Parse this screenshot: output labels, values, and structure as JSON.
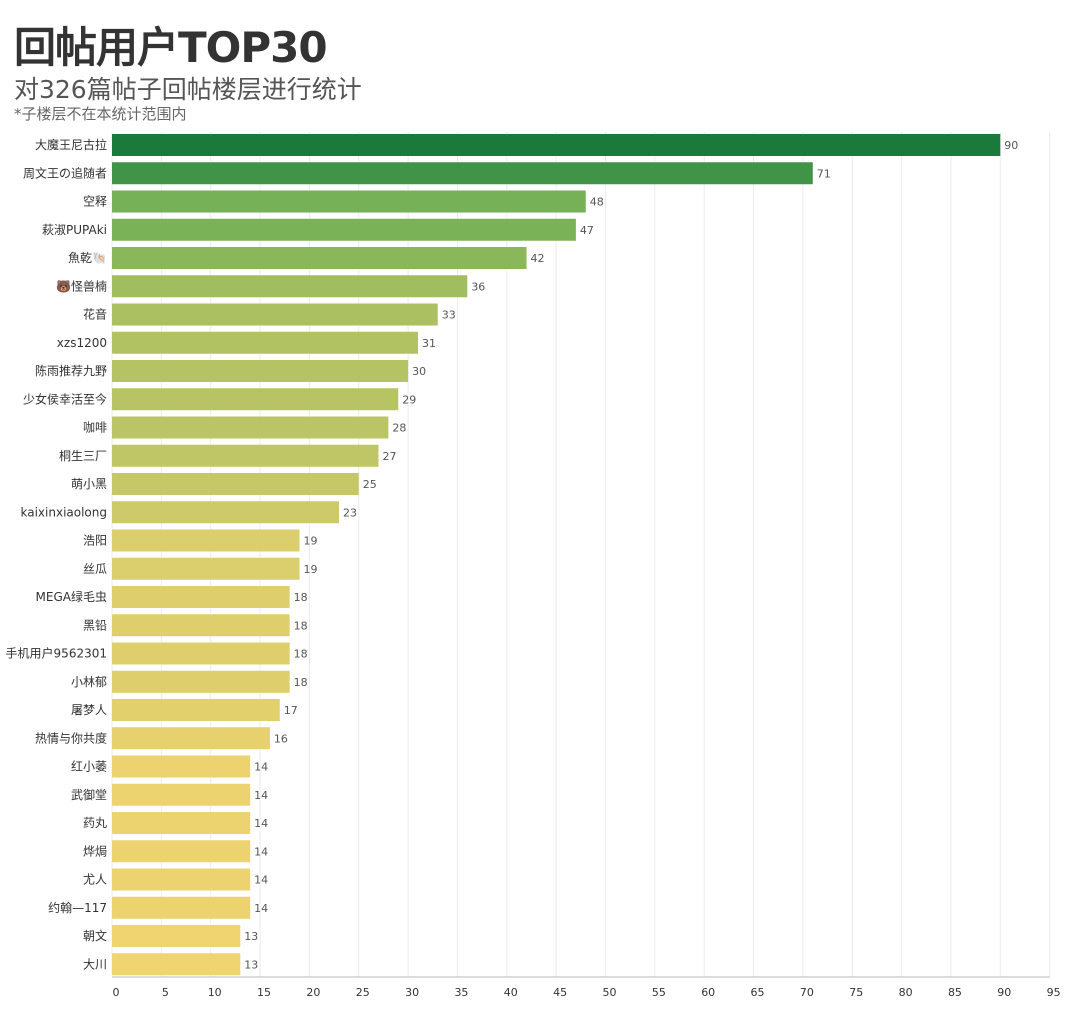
{
  "header": {
    "title": "回帖用户TOP30",
    "subtitle": "对326篇帖子回帖楼层进行统计",
    "note": "*子楼层不在本统计范围内"
  },
  "colors": {
    "bar_high": "#1a7a3c",
    "bar_mid": "#6aad54",
    "bar_low": "#f0d470",
    "gridline": "#ececec",
    "axis": "#bbbbbb"
  },
  "chart_data": {
    "type": "bar",
    "orientation": "horizontal",
    "title": "回帖用户TOP30",
    "subtitle": "对326篇帖子回帖楼层进行统计",
    "categories": [
      "大魔王尼古拉",
      "周文王の追随者",
      "空释",
      "萩淑PUPAki",
      "魚乾🐚",
      "🐻怪兽楠",
      "花音",
      "xzs1200",
      "陈雨推荐九野",
      "少女侯幸活至今",
      "咖啡",
      "桐生三厂",
      "萌小黑",
      "kaixinxiaolong",
      "浩阳",
      "丝瓜",
      "MEGA绿毛虫",
      "黑铅",
      "手机用户9562301",
      "小林郁",
      "屠梦人",
      "热情与你共度",
      "红小萎",
      "武御堂",
      "药丸",
      "烨焗",
      "尤人",
      "约翰—117",
      "朝文",
      "大川"
    ],
    "values": [
      90,
      71,
      48,
      47,
      42,
      36,
      33,
      31,
      30,
      29,
      28,
      27,
      25,
      23,
      19,
      19,
      18,
      18,
      18,
      18,
      17,
      16,
      14,
      14,
      14,
      14,
      14,
      14,
      13,
      13
    ],
    "x_ticks": [
      0,
      5,
      10,
      15,
      20,
      25,
      30,
      35,
      40,
      45,
      50,
      55,
      60,
      65,
      70,
      75,
      80,
      85,
      90,
      95
    ],
    "xlim": [
      0,
      95
    ],
    "grid": true,
    "legend": "none"
  }
}
